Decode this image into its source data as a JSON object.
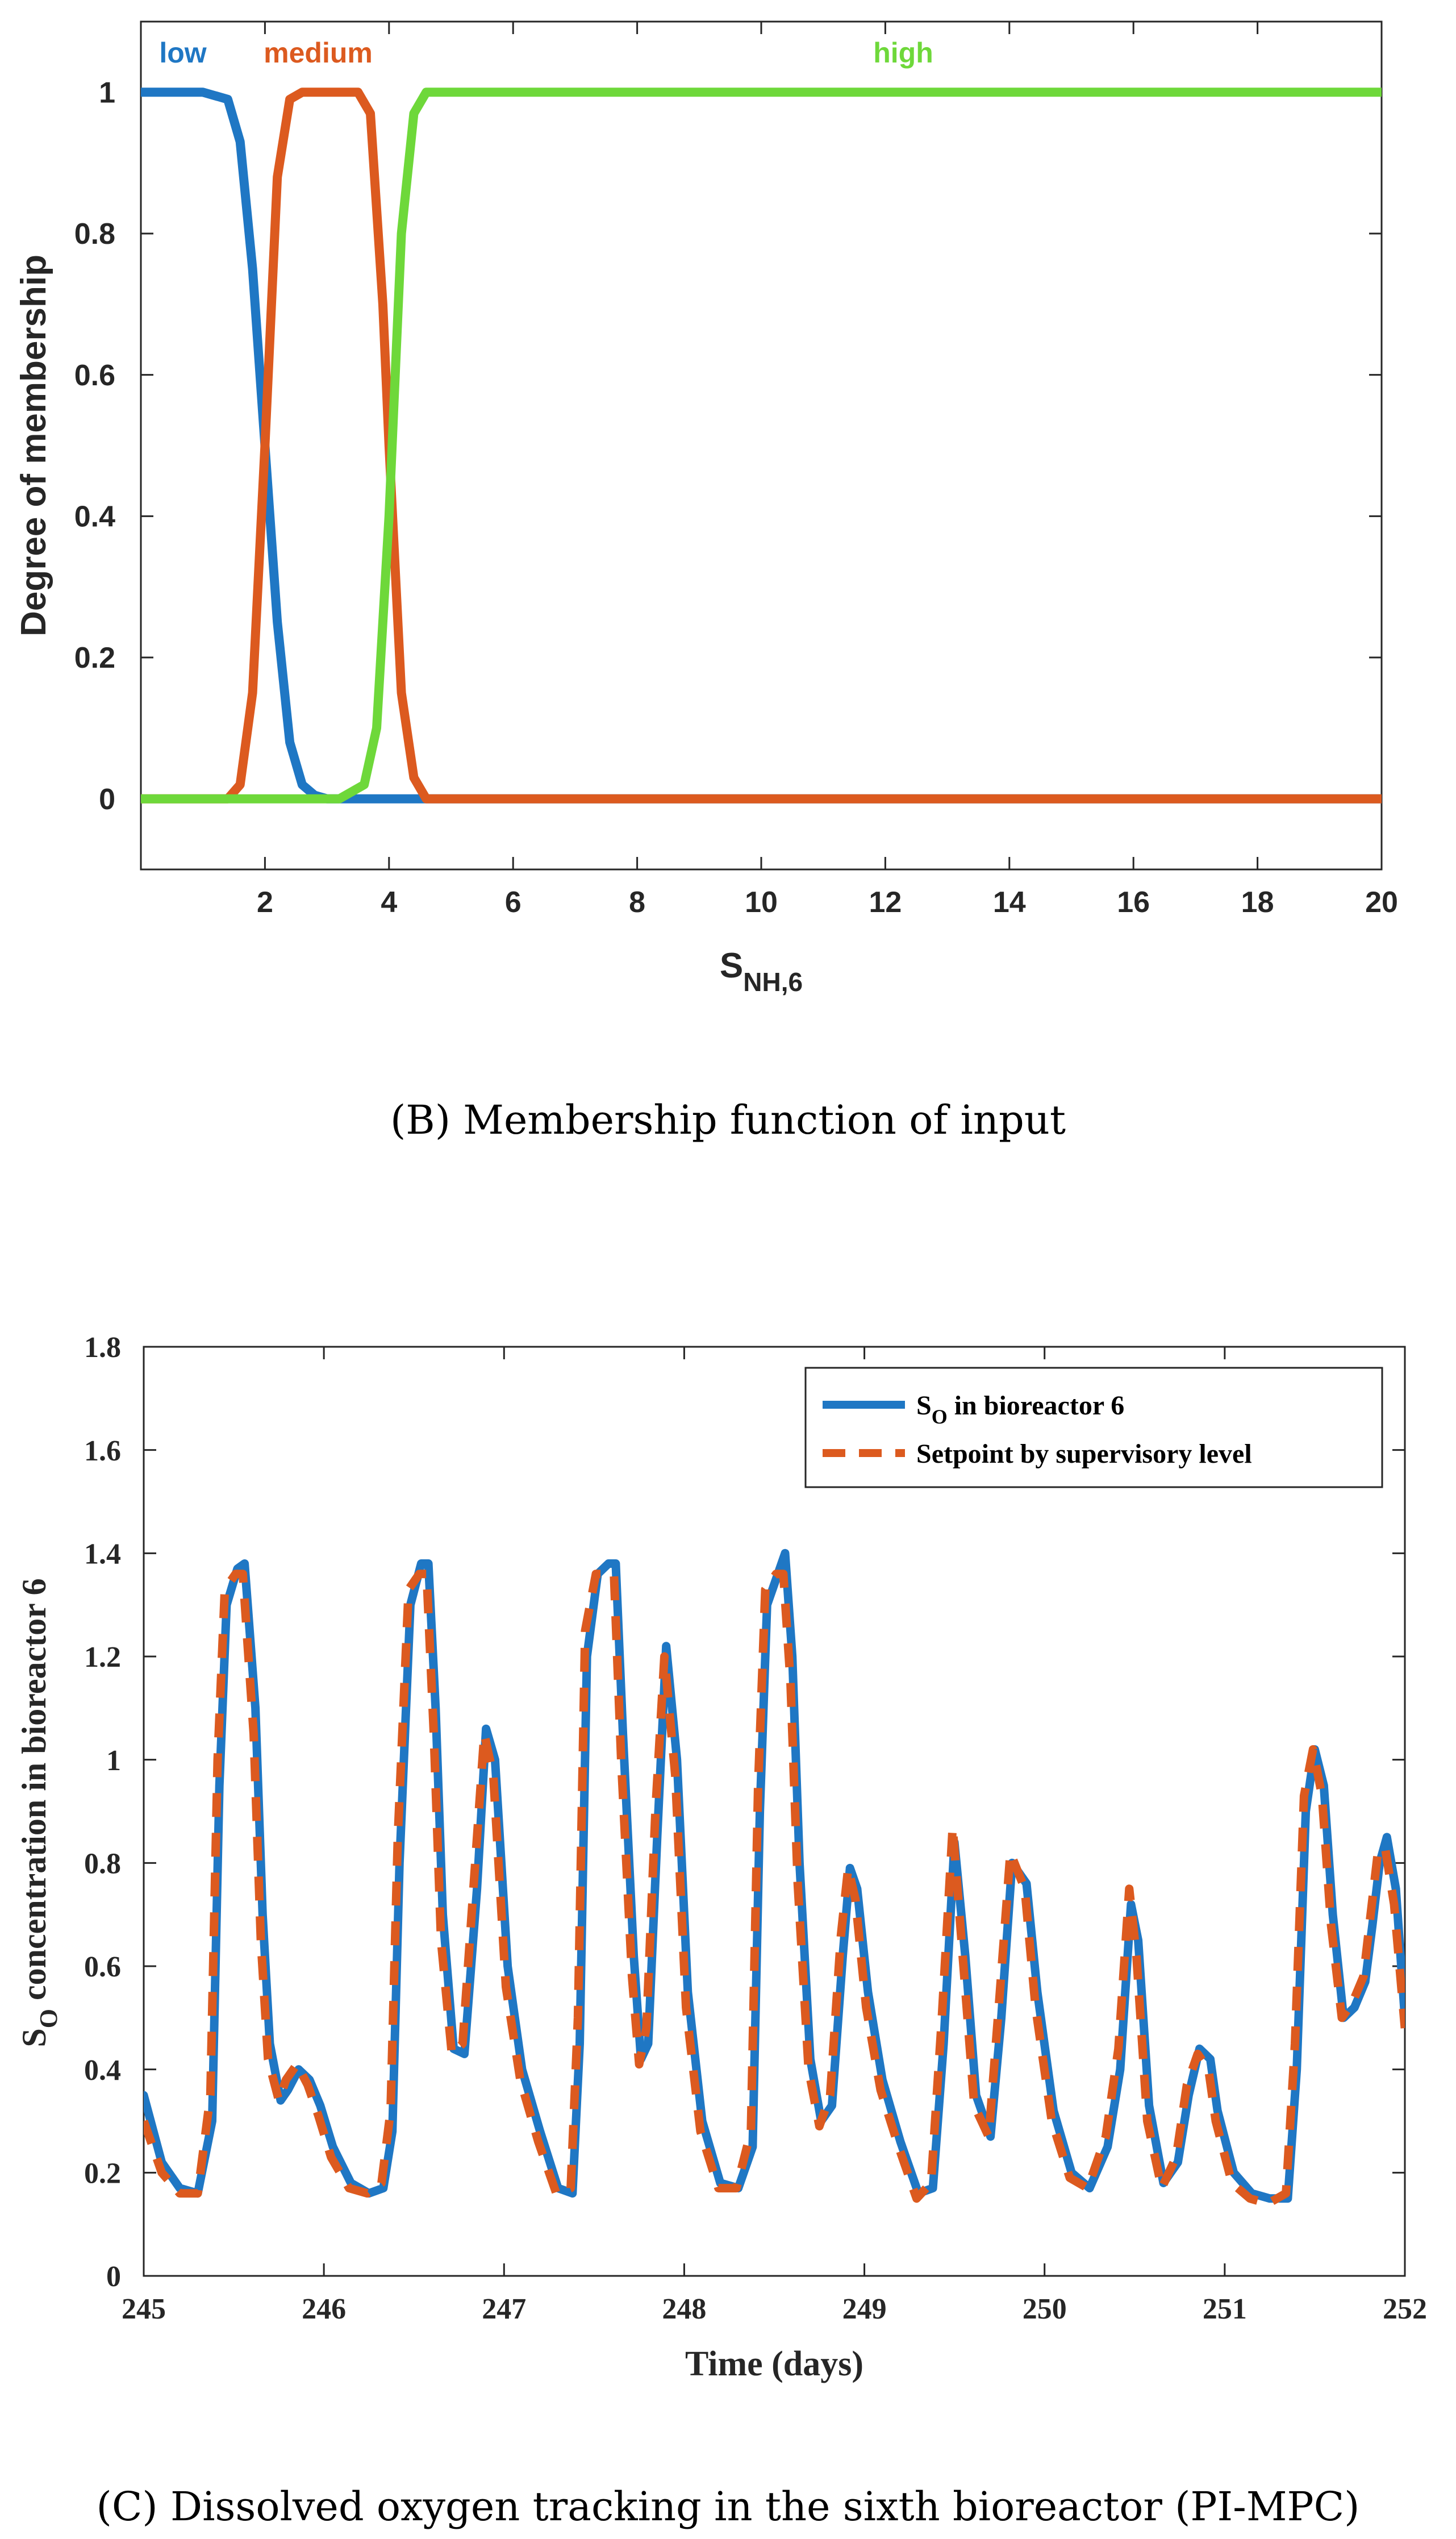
{
  "chart_data": [
    {
      "type": "line",
      "title": "",
      "xlabel": "S",
      "xlabel_sub": "NH,6",
      "ylabel": "Degree of membership",
      "xlim": [
        0,
        20
      ],
      "ylim": [
        -0.1,
        1.1
      ],
      "xticks": [
        2,
        4,
        6,
        8,
        10,
        12,
        14,
        16,
        18,
        20
      ],
      "yticks": [
        0,
        0.2,
        0.4,
        0.6,
        0.8,
        1
      ],
      "ytick_labels": [
        "0",
        "0.2",
        "0.4",
        "0.6",
        "0.8",
        "1"
      ],
      "series": [
        {
          "name": "low",
          "color": "#1f77c4",
          "x": [
            0,
            1,
            1.4,
            1.6,
            1.8,
            2.0,
            2.2,
            2.4,
            2.6,
            2.8,
            3.0,
            4.0,
            20
          ],
          "y": [
            1,
            1,
            0.99,
            0.93,
            0.75,
            0.5,
            0.25,
            0.08,
            0.02,
            0.005,
            0,
            0,
            0
          ]
        },
        {
          "name": "medium",
          "color": "#dc5a1f",
          "x": [
            0,
            1.4,
            1.6,
            1.8,
            2.0,
            2.2,
            2.4,
            2.6,
            3.5,
            3.7,
            3.9,
            4.0,
            4.2,
            4.4,
            4.6,
            20
          ],
          "y": [
            0,
            0,
            0.02,
            0.15,
            0.5,
            0.88,
            0.99,
            1,
            1,
            0.97,
            0.7,
            0.5,
            0.15,
            0.03,
            0,
            0
          ]
        },
        {
          "name": "high",
          "color": "#6ed83a",
          "x": [
            0,
            3.2,
            3.6,
            3.8,
            4.0,
            4.2,
            4.4,
            4.6,
            5.0,
            20
          ],
          "y": [
            0,
            0,
            0.02,
            0.1,
            0.4,
            0.8,
            0.97,
            1,
            1,
            1
          ]
        }
      ],
      "legend": [
        {
          "label": "low",
          "color": "#1f77c4"
        },
        {
          "label": "medium",
          "color": "#dc5a1f"
        },
        {
          "label": "high",
          "color": "#6ed83a"
        }
      ]
    },
    {
      "type": "line",
      "title": "",
      "xlabel": "Time (days)",
      "ylabel": "S",
      "ylabel_sub": "O",
      "ylabel_rest": " concentration in bioreactor 6",
      "xlim": [
        245,
        252
      ],
      "ylim": [
        0,
        1.8
      ],
      "xticks": [
        245,
        246,
        247,
        248,
        249,
        250,
        251,
        252
      ],
      "yticks": [
        0,
        0.2,
        0.4,
        0.6,
        0.8,
        1,
        1.2,
        1.4,
        1.6,
        1.8
      ],
      "ytick_labels": [
        "0",
        "0.2",
        "0.4",
        "0.6",
        "0.8",
        "1",
        "1.2",
        "1.4",
        "1.6",
        "1.8"
      ],
      "series": [
        {
          "name": "S_O in bioreactor 6",
          "color": "#1f77c4",
          "x": [
            245.0,
            245.1,
            245.2,
            245.3,
            245.38,
            245.42,
            245.46,
            245.52,
            245.56,
            245.62,
            245.66,
            245.7,
            245.76,
            245.8,
            245.86,
            245.92,
            245.98,
            246.05,
            246.15,
            246.25,
            246.33,
            246.38,
            246.42,
            246.48,
            246.54,
            246.58,
            246.62,
            246.66,
            246.72,
            246.78,
            246.85,
            246.9,
            246.95,
            247.02,
            247.1,
            247.2,
            247.3,
            247.38,
            247.42,
            247.46,
            247.52,
            247.58,
            247.62,
            247.66,
            247.72,
            247.76,
            247.8,
            247.85,
            247.9,
            247.96,
            248.02,
            248.1,
            248.2,
            248.3,
            248.38,
            248.42,
            248.46,
            248.52,
            248.56,
            248.6,
            248.64,
            248.7,
            248.76,
            248.82,
            248.88,
            248.92,
            248.96,
            249.02,
            249.1,
            249.2,
            249.3,
            249.38,
            249.44,
            249.5,
            249.56,
            249.62,
            249.7,
            249.76,
            249.82,
            249.9,
            249.96,
            250.05,
            250.15,
            250.25,
            250.35,
            250.42,
            250.48,
            250.52,
            250.58,
            250.66,
            250.74,
            250.8,
            250.86,
            250.92,
            250.96,
            251.05,
            251.15,
            251.25,
            251.35,
            251.4,
            251.45,
            251.5,
            251.55,
            251.6,
            251.66,
            251.72,
            251.78,
            251.82,
            251.86,
            251.9,
            251.95,
            252.0
          ],
          "y": [
            0.35,
            0.22,
            0.17,
            0.16,
            0.3,
            0.95,
            1.3,
            1.37,
            1.38,
            1.1,
            0.7,
            0.45,
            0.34,
            0.36,
            0.4,
            0.38,
            0.33,
            0.25,
            0.18,
            0.16,
            0.17,
            0.28,
            0.8,
            1.3,
            1.38,
            1.38,
            1.1,
            0.7,
            0.44,
            0.43,
            0.75,
            1.06,
            1.0,
            0.6,
            0.4,
            0.28,
            0.17,
            0.16,
            0.45,
            1.2,
            1.36,
            1.38,
            1.38,
            1.05,
            0.62,
            0.42,
            0.45,
            0.85,
            1.22,
            1.0,
            0.55,
            0.3,
            0.18,
            0.17,
            0.25,
            0.9,
            1.3,
            1.36,
            1.4,
            1.2,
            0.8,
            0.42,
            0.3,
            0.33,
            0.62,
            0.79,
            0.75,
            0.55,
            0.38,
            0.26,
            0.16,
            0.17,
            0.45,
            0.84,
            0.62,
            0.35,
            0.27,
            0.5,
            0.8,
            0.76,
            0.55,
            0.32,
            0.2,
            0.17,
            0.25,
            0.4,
            0.72,
            0.65,
            0.33,
            0.18,
            0.22,
            0.35,
            0.44,
            0.42,
            0.32,
            0.2,
            0.16,
            0.15,
            0.15,
            0.4,
            0.9,
            1.02,
            0.95,
            0.7,
            0.5,
            0.52,
            0.57,
            0.68,
            0.8,
            0.85,
            0.75,
            0.5
          ],
          "style": "solid"
        },
        {
          "name": "Setpoint by supervisory level",
          "color": "#dc5a1f",
          "x": [
            245.0,
            245.1,
            245.2,
            245.3,
            245.37,
            245.41,
            245.45,
            245.51,
            245.55,
            245.61,
            245.65,
            245.69,
            245.75,
            245.79,
            245.85,
            245.91,
            245.97,
            246.04,
            246.14,
            246.24,
            246.32,
            246.37,
            246.41,
            246.47,
            246.53,
            246.57,
            246.61,
            246.65,
            246.71,
            246.77,
            246.84,
            246.89,
            246.94,
            247.01,
            247.09,
            247.19,
            247.29,
            247.37,
            247.41,
            247.45,
            247.51,
            247.57,
            247.61,
            247.65,
            247.71,
            247.75,
            247.79,
            247.84,
            247.89,
            247.95,
            248.01,
            248.09,
            248.19,
            248.29,
            248.37,
            248.41,
            248.45,
            248.51,
            248.55,
            248.59,
            248.63,
            248.69,
            248.75,
            248.81,
            248.87,
            248.91,
            248.95,
            249.01,
            249.09,
            249.19,
            249.29,
            249.37,
            249.43,
            249.49,
            249.55,
            249.61,
            249.69,
            249.75,
            249.81,
            249.89,
            249.95,
            250.04,
            250.14,
            250.24,
            250.34,
            250.41,
            250.47,
            250.51,
            250.57,
            250.65,
            250.73,
            250.79,
            250.85,
            250.91,
            250.95,
            251.04,
            251.14,
            251.24,
            251.34,
            251.39,
            251.44,
            251.49,
            251.54,
            251.59,
            251.65,
            251.71,
            251.77,
            251.81,
            251.85,
            251.89,
            251.94,
            252.0
          ],
          "y": [
            0.3,
            0.2,
            0.16,
            0.16,
            0.35,
            1.0,
            1.33,
            1.36,
            1.36,
            1.05,
            0.65,
            0.42,
            0.34,
            0.38,
            0.41,
            0.37,
            0.31,
            0.23,
            0.17,
            0.16,
            0.18,
            0.32,
            0.85,
            1.33,
            1.36,
            1.36,
            1.05,
            0.65,
            0.43,
            0.45,
            0.8,
            1.05,
            0.97,
            0.56,
            0.38,
            0.26,
            0.16,
            0.17,
            0.5,
            1.25,
            1.36,
            1.36,
            1.36,
            1.0,
            0.58,
            0.41,
            0.48,
            0.9,
            1.2,
            0.97,
            0.52,
            0.28,
            0.17,
            0.17,
            0.28,
            0.95,
            1.33,
            1.36,
            1.36,
            1.15,
            0.76,
            0.4,
            0.29,
            0.35,
            0.66,
            0.79,
            0.73,
            0.52,
            0.36,
            0.25,
            0.15,
            0.18,
            0.5,
            0.87,
            0.6,
            0.33,
            0.27,
            0.54,
            0.82,
            0.75,
            0.52,
            0.3,
            0.19,
            0.17,
            0.27,
            0.44,
            0.75,
            0.62,
            0.3,
            0.17,
            0.23,
            0.37,
            0.43,
            0.4,
            0.3,
            0.18,
            0.15,
            0.14,
            0.16,
            0.45,
            0.93,
            1.02,
            0.93,
            0.68,
            0.5,
            0.53,
            0.58,
            0.7,
            0.82,
            0.83,
            0.72,
            0.48
          ],
          "style": "dashed"
        }
      ],
      "legend": [
        {
          "label_main": "S",
          "label_sub": "O",
          "label_rest": " in bioreactor 6",
          "color": "#1f77c4",
          "style": "solid"
        },
        {
          "label_main": "Setpoint by supervisory level",
          "label_sub": "",
          "label_rest": "",
          "color": "#dc5a1f",
          "style": "dashed"
        }
      ],
      "legend_position": "top-right"
    }
  ],
  "captions": {
    "top": "(B)  Membership function of input",
    "bottom": "(C)  Dissolved oxygen tracking in the sixth bioreactor (PI-MPC)"
  }
}
